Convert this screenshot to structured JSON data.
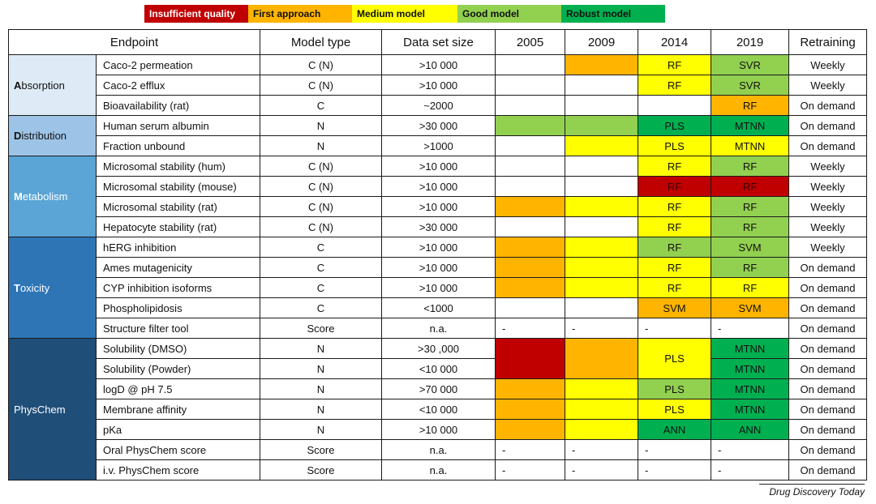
{
  "legend": [
    {
      "label": "Insufficient quality",
      "color": "#c00000",
      "text_color": "#ffffff"
    },
    {
      "label": "First approach",
      "color": "#ffb400",
      "text_color": "#111111"
    },
    {
      "label": "Medium model",
      "color": "#ffff00",
      "text_color": "#111111"
    },
    {
      "label": "Good model",
      "color": "#92d050",
      "text_color": "#111111"
    },
    {
      "label": "Robust model",
      "color": "#00b050",
      "text_color": "#111111"
    }
  ],
  "colors": {
    "insufficient": "#c00000",
    "first": "#ffb400",
    "medium": "#ffff00",
    "good": "#92d050",
    "robust": "#00b050",
    "none": "#ffffff"
  },
  "chart_data": {
    "type": "table",
    "columns": [
      "Endpoint",
      "Model type",
      "Data set size",
      "2005",
      "2009",
      "2014",
      "2019",
      "Retraining"
    ],
    "categories": [
      {
        "name": "Absorption",
        "initial": "A",
        "rest": "bsorption",
        "color": "#deebf7",
        "text_color": "#111111",
        "rows": 3
      },
      {
        "name": "Distribution",
        "initial": "D",
        "rest": "istribution",
        "color": "#9dc3e6",
        "text_color": "#111111",
        "rows": 2
      },
      {
        "name": "Metabolism",
        "initial": "M",
        "rest": "etabolism",
        "color": "#5aa5d6",
        "text_color": "#ffffff",
        "rows": 4
      },
      {
        "name": "Toxicity",
        "initial": "T",
        "rest": "oxicity",
        "color": "#2e75b6",
        "text_color": "#ffffff",
        "rows": 5
      },
      {
        "name": "PhysChem",
        "initial": "",
        "rest": "PhysChem",
        "color": "#1f4e79",
        "text_color": "#ffffff",
        "rows": 7
      }
    ],
    "rows": [
      {
        "endpoint": "Caco-2 permeation",
        "model_type": "C (N)",
        "size": ">10 000",
        "y2005": {
          "q": "none",
          "t": ""
        },
        "y2009": {
          "q": "first",
          "t": ""
        },
        "y2014": {
          "q": "medium",
          "t": "RF"
        },
        "y2019": {
          "q": "good",
          "t": "SVR"
        },
        "retraining": "Weekly"
      },
      {
        "endpoint": "Caco-2 efflux",
        "model_type": "C (N)",
        "size": ">10 000",
        "y2005": {
          "q": "none",
          "t": ""
        },
        "y2009": {
          "q": "none",
          "t": ""
        },
        "y2014": {
          "q": "medium",
          "t": "RF"
        },
        "y2019": {
          "q": "good",
          "t": "SVR"
        },
        "retraining": "Weekly"
      },
      {
        "endpoint": "Bioavailability (rat)",
        "model_type": "C",
        "size": "~2000",
        "y2005": {
          "q": "none",
          "t": ""
        },
        "y2009": {
          "q": "none",
          "t": ""
        },
        "y2014": {
          "q": "none",
          "t": ""
        },
        "y2019": {
          "q": "first",
          "t": "RF"
        },
        "retraining": "On demand"
      },
      {
        "endpoint": "Human serum albumin",
        "model_type": "N",
        "size": ">30 000",
        "y2005": {
          "q": "good",
          "t": ""
        },
        "y2009": {
          "q": "good",
          "t": ""
        },
        "y2014": {
          "q": "robust",
          "t": "PLS"
        },
        "y2019": {
          "q": "robust",
          "t": "MTNN"
        },
        "retraining": "On demand"
      },
      {
        "endpoint": "Fraction unbound",
        "model_type": "N",
        "size": ">1000",
        "y2005": {
          "q": "none",
          "t": ""
        },
        "y2009": {
          "q": "medium",
          "t": ""
        },
        "y2014": {
          "q": "medium",
          "t": "PLS"
        },
        "y2019": {
          "q": "medium",
          "t": "MTNN"
        },
        "retraining": "On demand"
      },
      {
        "endpoint": "Microsomal stability (hum)",
        "model_type": "C (N)",
        "size": ">10 000",
        "y2005": {
          "q": "none",
          "t": ""
        },
        "y2009": {
          "q": "none",
          "t": ""
        },
        "y2014": {
          "q": "medium",
          "t": "RF"
        },
        "y2019": {
          "q": "good",
          "t": "RF"
        },
        "retraining": "Weekly"
      },
      {
        "endpoint": "Microsomal stability (mouse)",
        "model_type": "C (N)",
        "size": ">10 000",
        "y2005": {
          "q": "none",
          "t": ""
        },
        "y2009": {
          "q": "none",
          "t": ""
        },
        "y2014": {
          "q": "insufficient",
          "t": "RF"
        },
        "y2019": {
          "q": "insufficient",
          "t": "RF"
        },
        "retraining": "Weekly"
      },
      {
        "endpoint": "Microsomal stability (rat)",
        "model_type": "C (N)",
        "size": ">10 000",
        "y2005": {
          "q": "first",
          "t": ""
        },
        "y2009": {
          "q": "medium",
          "t": ""
        },
        "y2014": {
          "q": "medium",
          "t": "RF"
        },
        "y2019": {
          "q": "good",
          "t": "RF"
        },
        "retraining": "Weekly"
      },
      {
        "endpoint": "Hepatocyte stability (rat)",
        "model_type": "C (N)",
        "size": ">30 000",
        "y2005": {
          "q": "none",
          "t": ""
        },
        "y2009": {
          "q": "none",
          "t": ""
        },
        "y2014": {
          "q": "medium",
          "t": "RF"
        },
        "y2019": {
          "q": "good",
          "t": "RF"
        },
        "retraining": "Weekly"
      },
      {
        "endpoint": "hERG inhibition",
        "model_type": "C",
        "size": ">10 000",
        "y2005": {
          "q": "first",
          "t": ""
        },
        "y2009": {
          "q": "medium",
          "t": ""
        },
        "y2014": {
          "q": "good",
          "t": "RF"
        },
        "y2019": {
          "q": "good",
          "t": "SVM"
        },
        "retraining": "Weekly"
      },
      {
        "endpoint": "Ames mutagenicity",
        "model_type": "C",
        "size": ">10 000",
        "y2005": {
          "q": "first",
          "t": ""
        },
        "y2009": {
          "q": "medium",
          "t": ""
        },
        "y2014": {
          "q": "medium",
          "t": "RF"
        },
        "y2019": {
          "q": "good",
          "t": "RF"
        },
        "retraining": "On demand"
      },
      {
        "endpoint": "CYP inhibition isoforms",
        "model_type": "C",
        "size": ">10 000",
        "y2005": {
          "q": "first",
          "t": ""
        },
        "y2009": {
          "q": "medium",
          "t": ""
        },
        "y2014": {
          "q": "medium",
          "t": "RF"
        },
        "y2019": {
          "q": "medium",
          "t": "RF"
        },
        "retraining": "On demand"
      },
      {
        "endpoint": "Phospholipidosis",
        "model_type": "C",
        "size": "<1000",
        "y2005": {
          "q": "none",
          "t": ""
        },
        "y2009": {
          "q": "none",
          "t": ""
        },
        "y2014": {
          "q": "first",
          "t": "SVM"
        },
        "y2019": {
          "q": "first",
          "t": "SVM"
        },
        "retraining": "On demand"
      },
      {
        "endpoint": "Structure filter tool",
        "model_type": "Score",
        "size": "n.a.",
        "y2005": {
          "q": "none",
          "t": "-"
        },
        "y2009": {
          "q": "none",
          "t": "-"
        },
        "y2014": {
          "q": "none",
          "t": "-"
        },
        "y2019": {
          "q": "none",
          "t": "-"
        },
        "retraining": "On demand"
      },
      {
        "endpoint": "Solubility (DMSO)",
        "model_type": "N",
        "size": ">30 ,000",
        "y2005": {
          "q": "insufficient",
          "t": ""
        },
        "y2009": {
          "q": "first",
          "t": ""
        },
        "y2014": {
          "q": "medium",
          "t": "PLS"
        },
        "y2019": {
          "q": "robust",
          "t": "MTNN"
        },
        "retraining": "On demand"
      },
      {
        "endpoint": "Solubility (Powder)",
        "model_type": "N",
        "size": "<10 000",
        "y2005": null,
        "y2009": null,
        "y2014": null,
        "y2019": {
          "q": "robust",
          "t": "MTNN"
        },
        "retraining": "On demand"
      },
      {
        "endpoint": "logD @ pH 7.5",
        "model_type": "N",
        "size": ">70 000",
        "y2005": {
          "q": "first",
          "t": ""
        },
        "y2009": {
          "q": "medium",
          "t": ""
        },
        "y2014": {
          "q": "good",
          "t": "PLS"
        },
        "y2019": {
          "q": "robust",
          "t": "MTNN"
        },
        "retraining": "On demand"
      },
      {
        "endpoint": "Membrane affinity",
        "model_type": "N",
        "size": "<10 000",
        "y2005": {
          "q": "first",
          "t": ""
        },
        "y2009": {
          "q": "medium",
          "t": ""
        },
        "y2014": {
          "q": "medium",
          "t": "PLS"
        },
        "y2019": {
          "q": "robust",
          "t": "MTNN"
        },
        "retraining": "On demand"
      },
      {
        "endpoint": "pKa",
        "model_type": "N",
        "size": ">10 000",
        "y2005": {
          "q": "first",
          "t": ""
        },
        "y2009": {
          "q": "medium",
          "t": ""
        },
        "y2014": {
          "q": "robust",
          "t": "ANN"
        },
        "y2019": {
          "q": "robust",
          "t": "ANN"
        },
        "retraining": "On demand"
      },
      {
        "endpoint": "Oral PhysChem score",
        "model_type": "Score",
        "size": "n.a.",
        "y2005": {
          "q": "none",
          "t": "-"
        },
        "y2009": {
          "q": "none",
          "t": "-"
        },
        "y2014": {
          "q": "none",
          "t": "-"
        },
        "y2019": {
          "q": "none",
          "t": "-"
        },
        "retraining": "On demand"
      },
      {
        "endpoint": "i.v. PhysChem score",
        "model_type": "Score",
        "size": "n.a.",
        "y2005": {
          "q": "none",
          "t": "-"
        },
        "y2009": {
          "q": "none",
          "t": "-"
        },
        "y2014": {
          "q": "none",
          "t": "-"
        },
        "y2019": {
          "q": "none",
          "t": "-"
        },
        "retraining": "On demand"
      }
    ],
    "merged_2005_2009_2014_rows": [
      14,
      15
    ]
  },
  "footer": "Drug Discovery Today"
}
